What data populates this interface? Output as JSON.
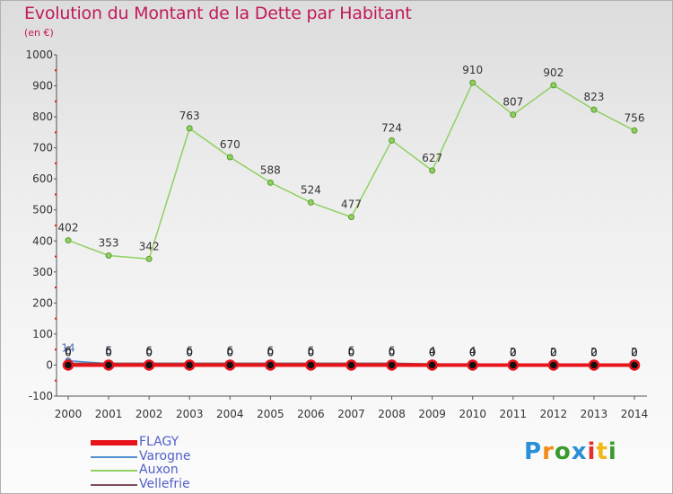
{
  "title": "Evolution du Montant de la Dette par Habitant",
  "subtitle": "(en €)",
  "logo": {
    "text": "Proxiti",
    "letter_colors": [
      "#2a8fd6",
      "#f28c18",
      "#3a9b2c",
      "#2a8fd6",
      "#e52e2e",
      "#f2b818",
      "#3a9b2c"
    ]
  },
  "chart_data": {
    "type": "line",
    "x": [
      "2000",
      "2001",
      "2002",
      "2003",
      "2004",
      "2005",
      "2006",
      "2007",
      "2008",
      "2009",
      "2010",
      "2011",
      "2012",
      "2013",
      "2014"
    ],
    "ylim": [
      -100,
      1000
    ],
    "yticks": [
      -100,
      0,
      100,
      200,
      300,
      400,
      500,
      600,
      700,
      800,
      900,
      1000
    ],
    "grid": false,
    "legend_position": "bottom-left",
    "series": [
      {
        "name": "FLAGY",
        "color": "#e8141c",
        "values": [
          0,
          0,
          0,
          0,
          0,
          0,
          0,
          0,
          0,
          0,
          0,
          0,
          0,
          0,
          0
        ]
      },
      {
        "name": "Varogne",
        "color": "#4f8fd0",
        "values": [
          14,
          5,
          0,
          0,
          0,
          0,
          0,
          0,
          0,
          0,
          0,
          0,
          0,
          0,
          0
        ]
      },
      {
        "name": "Auxon",
        "color": "#8fd060",
        "values": [
          402,
          353,
          342,
          763,
          670,
          588,
          524,
          477,
          724,
          627,
          910,
          807,
          902,
          823,
          756
        ]
      },
      {
        "name": "Vellefrie",
        "color": "#7a4f55",
        "values": [
          6,
          6,
          6,
          6,
          6,
          6,
          6,
          6,
          6,
          4,
          4,
          2,
          2,
          2,
          2
        ]
      }
    ]
  }
}
